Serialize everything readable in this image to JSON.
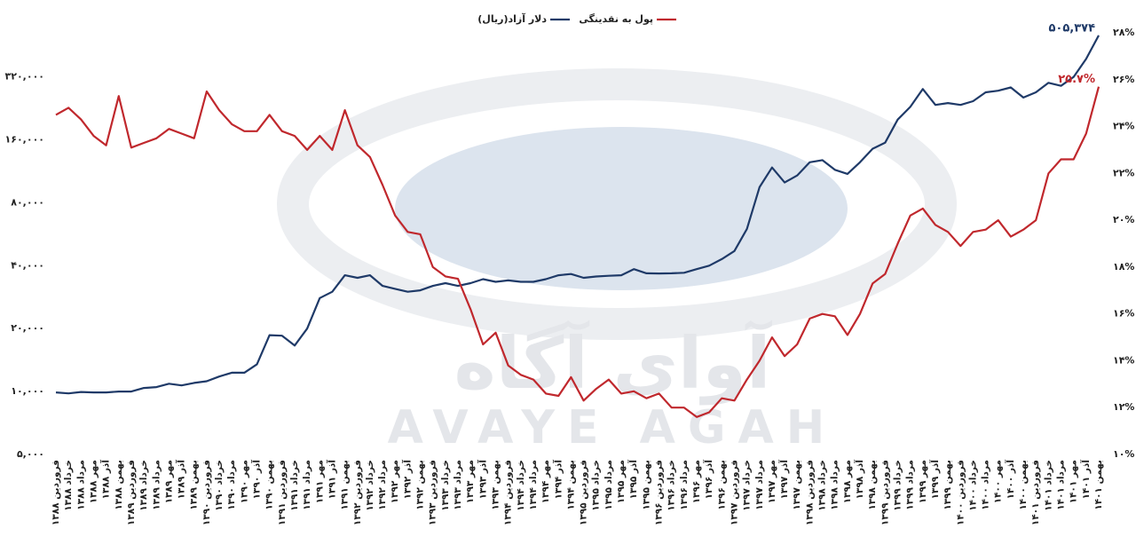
{
  "chart_data": {
    "type": "line",
    "watermark": {
      "fa": "آوای آگاه",
      "en": "AVAYE AGAH"
    },
    "categories": [
      "فروردین ۱۳۸۸",
      "خرداد ۱۳۸۸",
      "مرداد ۱۳۸۸",
      "مهر ۱۳۸۸",
      "آذر ۱۳۸۸",
      "بهمن ۱۳۸۸",
      "فروردین ۱۳۸۹",
      "خرداد ۱۳۸۹",
      "مرداد ۱۳۸۹",
      "مهر ۱۳۸۹",
      "آذر ۱۳۸۹",
      "بهمن ۱۳۸۹",
      "فروردین ۱۳۹۰",
      "خرداد ۱۳۹۰",
      "مرداد ۱۳۹۰",
      "مهر ۱۳۹۰",
      "آذر ۱۳۹۰",
      "بهمن ۱۳۹۰",
      "فروردین ۱۳۹۱",
      "خرداد ۱۳۹۱",
      "مرداد ۱۳۹۱",
      "مهر ۱۳۹۱",
      "آذر ۱۳۹۱",
      "بهمن ۱۳۹۱",
      "فروردین ۱۳۹۲",
      "خرداد ۱۳۹۲",
      "مرداد ۱۳۹۲",
      "مهر ۱۳۹۲",
      "آذر ۱۳۹۲",
      "بهمن ۱۳۹۲",
      "فروردین ۱۳۹۳",
      "خرداد ۱۳۹۳",
      "مرداد ۱۳۹۳",
      "مهر ۱۳۹۳",
      "آذر ۱۳۹۳",
      "بهمن ۱۳۹۳",
      "فروردین ۱۳۹۴",
      "خرداد ۱۳۹۴",
      "مرداد ۱۳۹۴",
      "مهر ۱۳۹۴",
      "آذر ۱۳۹۴",
      "بهمن ۱۳۹۴",
      "فروردین ۱۳۹۵",
      "خرداد ۱۳۹۵",
      "مرداد ۱۳۹۵",
      "مهر ۱۳۹۵",
      "آذر ۱۳۹۵",
      "بهمن ۱۳۹۵",
      "فروردین ۱۳۹۶",
      "خرداد ۱۳۹۶",
      "مرداد ۱۳۹۶",
      "مهر ۱۳۹۶",
      "آذر ۱۳۹۶",
      "بهمن ۱۳۹۶",
      "فروردین ۱۳۹۷",
      "خرداد ۱۳۹۷",
      "مرداد ۱۳۹۷",
      "مهر ۱۳۹۷",
      "آذر ۱۳۹۷",
      "بهمن ۱۳۹۷",
      "فروردین ۱۳۹۸",
      "خرداد ۱۳۹۸",
      "مرداد ۱۳۹۸",
      "مهر ۱۳۹۸",
      "آذر ۱۳۹۸",
      "بهمن ۱۳۹۸",
      "فروردین ۱۳۹۹",
      "خرداد ۱۳۹۹",
      "مرداد ۱۳۹۹",
      "مهر ۱۳۹۹",
      "آذر ۱۳۹۹",
      "بهمن ۱۳۹۹",
      "فروردین ۱۴۰۰",
      "خرداد ۱۴۰۰",
      "مرداد ۱۴۰۰",
      "مهر ۱۴۰۰",
      "آذر ۱۴۰۰",
      "بهمن ۱۴۰۰",
      "فروردین ۱۴۰۱",
      "خرداد ۱۴۰۱",
      "مرداد ۱۴۰۱",
      "مهر ۱۴۰۱",
      "آذر ۱۴۰۱",
      "بهمن ۱۴۰۱"
    ],
    "series": [
      {
        "name": "دلار آزاد(ریال)",
        "color": "#1f3a68",
        "axis": "y",
        "values": [
          9900,
          9800,
          9950,
          9900,
          9900,
          10000,
          10000,
          10400,
          10500,
          10900,
          10700,
          11000,
          11200,
          11800,
          12300,
          12300,
          13500,
          18600,
          18500,
          16600,
          20000,
          28000,
          30000,
          36000,
          35000,
          36000,
          32000,
          31000,
          30000,
          30500,
          32000,
          33000,
          32000,
          33000,
          34500,
          33500,
          34000,
          33500,
          33500,
          34500,
          36000,
          36500,
          35000,
          35500,
          35800,
          36000,
          38500,
          36800,
          36700,
          36800,
          37000,
          38500,
          40000,
          43000,
          47000,
          60000,
          95000,
          118000,
          100000,
          108000,
          125000,
          128000,
          115000,
          110000,
          125000,
          145000,
          155000,
          200000,
          230000,
          280000,
          235000,
          240000,
          235000,
          245000,
          270000,
          275000,
          285000,
          255000,
          270000,
          300000,
          290000,
          320000,
          390000,
          505374
        ],
        "value_labels": [
          null,
          null,
          null,
          null,
          null,
          null,
          null,
          null,
          null,
          null,
          null,
          null,
          null,
          null,
          null,
          null,
          null,
          null,
          null,
          null,
          null,
          null,
          null,
          null,
          null,
          null,
          null,
          null,
          null,
          null,
          null,
          null,
          null,
          null,
          null,
          null,
          null,
          null,
          null,
          null,
          null,
          null,
          null,
          null,
          null,
          null,
          null,
          null,
          null,
          null,
          null,
          null,
          null,
          null,
          null,
          null,
          null,
          null,
          null,
          null,
          null,
          null,
          null,
          null,
          null,
          null,
          null,
          null,
          null,
          null,
          null,
          null,
          null,
          null,
          null,
          null,
          null,
          null,
          null,
          null,
          null,
          null,
          null,
          "۵۰۵,۳۷۴"
        ]
      },
      {
        "name": "پول به نقدینگی",
        "color": "#c0282d",
        "axis": "y2",
        "values": [
          24.5,
          24.8,
          24.3,
          23.6,
          23.2,
          25.3,
          23.1,
          23.3,
          23.5,
          23.9,
          23.7,
          23.5,
          25.5,
          24.7,
          24.1,
          23.8,
          23.8,
          24.5,
          23.8,
          23.6,
          23.0,
          23.6,
          23.0,
          24.7,
          23.2,
          22.7,
          21.5,
          20.2,
          19.5,
          19.4,
          18.0,
          17.6,
          17.5,
          16.2,
          14.7,
          15.2,
          13.8,
          13.4,
          13.2,
          12.6,
          12.5,
          13.3,
          12.3,
          12.8,
          13.2,
          12.6,
          12.7,
          12.4,
          12.6,
          12.0,
          12.0,
          11.6,
          11.8,
          12.4,
          12.3,
          13.2,
          14.0,
          15.0,
          14.2,
          14.7,
          15.8,
          16.0,
          15.9,
          15.1,
          16.0,
          17.3,
          17.7,
          19.0,
          20.2,
          20.5,
          19.8,
          19.5,
          18.9,
          19.5,
          19.6,
          20.0,
          19.3,
          19.6,
          20.0,
          22.0,
          22.6,
          22.6,
          23.7,
          25.7
        ],
        "value_labels": [
          null,
          null,
          null,
          null,
          null,
          null,
          null,
          null,
          null,
          null,
          null,
          null,
          null,
          null,
          null,
          null,
          null,
          null,
          null,
          null,
          null,
          null,
          null,
          null,
          null,
          null,
          null,
          null,
          null,
          null,
          null,
          null,
          null,
          null,
          null,
          null,
          null,
          null,
          null,
          null,
          null,
          null,
          null,
          null,
          null,
          null,
          null,
          null,
          null,
          null,
          null,
          null,
          null,
          null,
          null,
          null,
          null,
          null,
          null,
          null,
          null,
          null,
          null,
          null,
          null,
          null,
          null,
          null,
          null,
          null,
          null,
          null,
          null,
          null,
          null,
          null,
          null,
          null,
          null,
          null,
          null,
          null,
          null,
          "۲۵.۷%"
        ]
      }
    ],
    "ylog": true,
    "ylim": [
      5000,
      520000
    ],
    "yticks": [
      {
        "value": 5000,
        "label": "۵,۰۰۰"
      },
      {
        "value": 10000,
        "label": "۱۰,۰۰۰"
      },
      {
        "value": 20000,
        "label": "۲۰,۰۰۰"
      },
      {
        "value": 40000,
        "label": "۴۰,۰۰۰"
      },
      {
        "value": 80000,
        "label": "۸۰,۰۰۰"
      },
      {
        "value": 160000,
        "label": "۱۶۰,۰۰۰"
      },
      {
        "value": 320000,
        "label": "۳۲۰,۰۰۰"
      }
    ],
    "y2lim": [
      10,
      28
    ],
    "y2ticks": [
      {
        "value": 10,
        "label": "۱۰%"
      },
      {
        "value": 12,
        "label": "۱۲%"
      },
      {
        "value": 14,
        "label": "۱۴%"
      },
      {
        "value": 16,
        "label": "۱۶%"
      },
      {
        "value": 18,
        "label": "۱۸%"
      },
      {
        "value": 20,
        "label": "۲۰%"
      },
      {
        "value": 22,
        "label": "۲۲%"
      },
      {
        "value": 24,
        "label": "۲۴%"
      },
      {
        "value": 26,
        "label": "۲۶%"
      },
      {
        "value": 28,
        "label": "۲۸%"
      }
    ],
    "grid": false,
    "legend": "top"
  }
}
